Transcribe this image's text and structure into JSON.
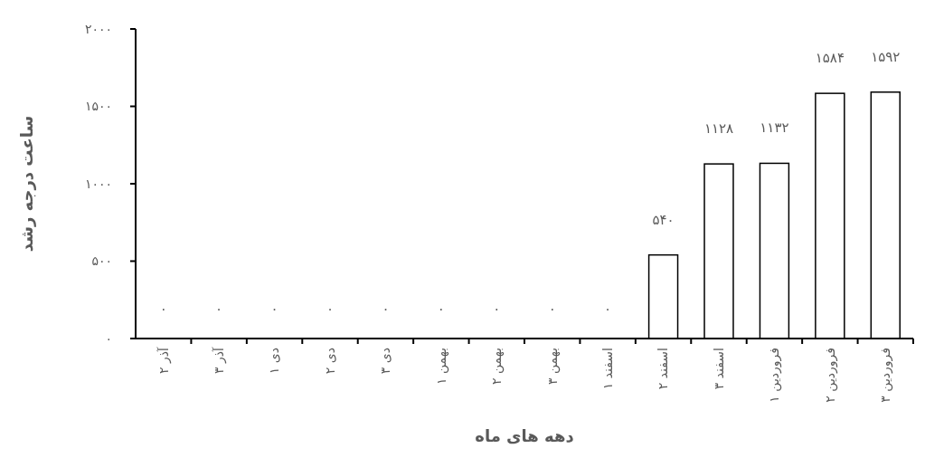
{
  "chart_data": {
    "type": "bar",
    "xlabel": "دهه های ماه",
    "ylabel": "ساعت درجه رشد",
    "categories": [
      "آذر ۲",
      "آذر ۳",
      "دی ۱",
      "دی ۲",
      "دی ۳",
      "بهمن ۱",
      "بهمن ۲",
      "بهمن ۳",
      "اسفند ۱",
      "اسفند ۲",
      "اسفند ۳",
      "فروردین ۱",
      "فروردین ۲",
      "فروردین ۳"
    ],
    "values": [
      0,
      0,
      0,
      0,
      0,
      0,
      0,
      0,
      0,
      540,
      1128,
      1132,
      1584,
      1592
    ],
    "value_labels": [
      "۰",
      "۰",
      "۰",
      "۰",
      "۰",
      "۰",
      "۰",
      "۰",
      "۰",
      "۵۴۰",
      "۱۱۲۸",
      "۱۱۳۲",
      "۱۵۸۴",
      "۱۵۹۲"
    ],
    "color": "#ffffff",
    "ylim": [
      0,
      2000
    ],
    "yticks": [
      {
        "value": 0,
        "label": "۰"
      },
      {
        "value": 500,
        "label": "۵۰۰"
      },
      {
        "value": 1000,
        "label": "۱۰۰۰"
      },
      {
        "value": 1500,
        "label": "۱۵۰۰"
      },
      {
        "value": 2000,
        "label": "۲۰۰۰"
      }
    ],
    "grid": false
  }
}
